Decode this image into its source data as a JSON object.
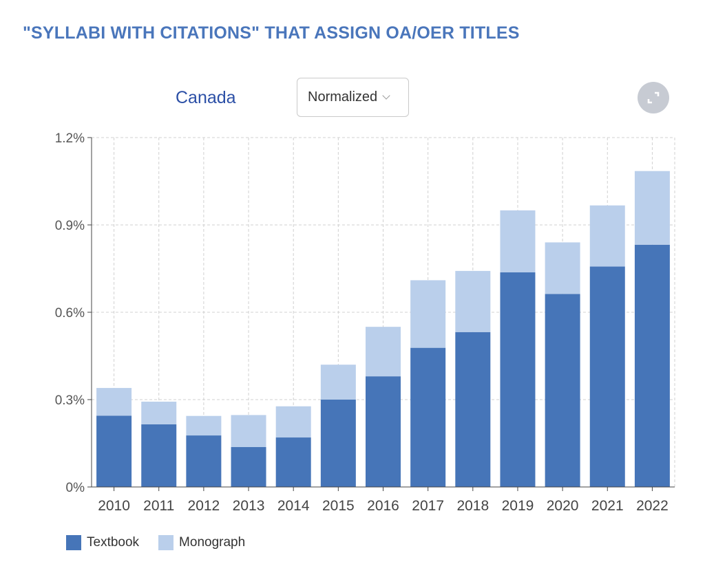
{
  "title": "\"SYLLABI WITH CITATIONS\" THAT ASSIGN OA/OER TITLES",
  "region": "Canada",
  "view_select": {
    "selected": "Normalized"
  },
  "expand_button": {
    "icon": "expand-icon"
  },
  "colors": {
    "textbook": "#4675b8",
    "monograph": "#bacfeb",
    "title": "#4a76bb"
  },
  "chart_data": {
    "type": "bar",
    "stacked": true,
    "categories": [
      "2010",
      "2011",
      "2012",
      "2013",
      "2014",
      "2015",
      "2016",
      "2017",
      "2018",
      "2019",
      "2020",
      "2021",
      "2022"
    ],
    "series": [
      {
        "name": "Textbook",
        "values": [
          0.245,
          0.215,
          0.177,
          0.137,
          0.17,
          0.3,
          0.38,
          0.478,
          0.532,
          0.737,
          0.663,
          0.757,
          0.832
        ]
      },
      {
        "name": "Monograph",
        "values": [
          0.095,
          0.078,
          0.067,
          0.11,
          0.107,
          0.12,
          0.17,
          0.232,
          0.21,
          0.213,
          0.177,
          0.21,
          0.253
        ]
      }
    ],
    "yticks": [
      "0%",
      "0.3%",
      "0.6%",
      "0.9%",
      "1.2%"
    ],
    "ytick_values": [
      0,
      0.3,
      0.6,
      0.9,
      1.2
    ],
    "ylim": [
      0,
      1.2
    ],
    "xlabel": "",
    "ylabel": "",
    "grid": true,
    "legend": "bottom-left"
  }
}
